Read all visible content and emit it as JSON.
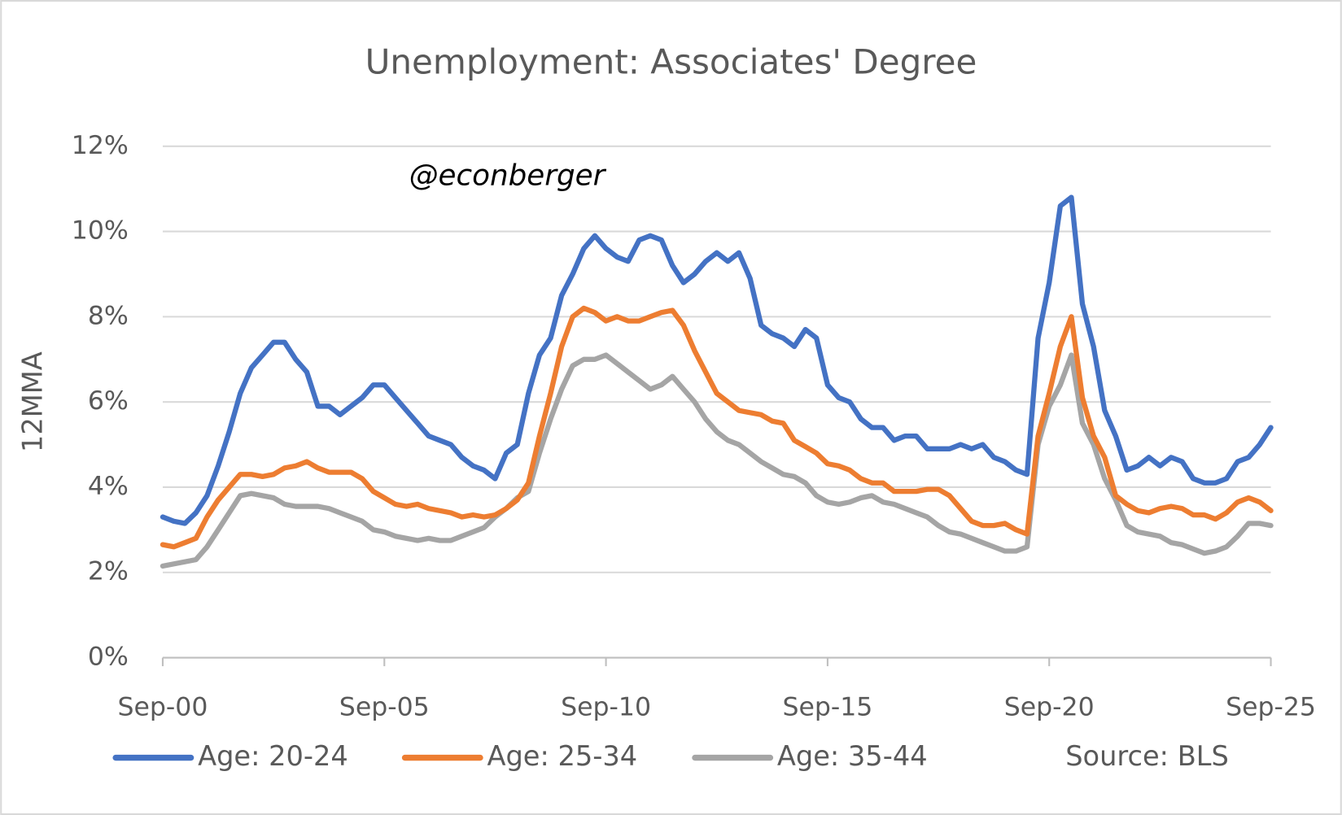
{
  "chart_data": {
    "type": "line",
    "title": "Unemployment: Associates' Degree",
    "y_label": "12MMA",
    "annotations": [
      "@econberger",
      "Source: BLS"
    ],
    "categories": [
      "Sep-00",
      null,
      null,
      null,
      null,
      null,
      null,
      null,
      null,
      null,
      null,
      null,
      null,
      null,
      null,
      null,
      null,
      null,
      null,
      null,
      "Sep-05",
      null,
      null,
      null,
      null,
      null,
      null,
      null,
      null,
      null,
      null,
      null,
      null,
      null,
      null,
      null,
      null,
      null,
      null,
      null,
      "Sep-10",
      null,
      null,
      null,
      null,
      null,
      null,
      null,
      null,
      null,
      null,
      null,
      null,
      null,
      null,
      null,
      null,
      null,
      null,
      null,
      "Sep-15",
      null,
      null,
      null,
      null,
      null,
      null,
      null,
      null,
      null,
      null,
      null,
      null,
      null,
      null,
      null,
      null,
      null,
      null,
      null,
      "Sep-20",
      null,
      null,
      null,
      null,
      null,
      null,
      null,
      null,
      null,
      null,
      null,
      null,
      null,
      null,
      null,
      null,
      null,
      null,
      null,
      "Sep-25"
    ],
    "series": [
      {
        "name": "Age: 20-24",
        "color": "#4472c4",
        "values": [
          3.3,
          3.2,
          3.15,
          3.4,
          3.8,
          4.5,
          5.3,
          6.2,
          6.8,
          7.1,
          7.4,
          7.4,
          7.0,
          6.7,
          5.9,
          5.9,
          5.7,
          5.9,
          6.1,
          6.4,
          6.4,
          6.1,
          5.8,
          5.5,
          5.2,
          5.1,
          5.0,
          4.7,
          4.5,
          4.4,
          4.2,
          4.8,
          5.0,
          6.2,
          7.1,
          7.5,
          8.5,
          9.0,
          9.6,
          9.9,
          9.6,
          9.4,
          9.3,
          9.8,
          9.9,
          9.8,
          9.2,
          8.8,
          9.0,
          9.3,
          9.5,
          9.3,
          9.5,
          8.9,
          7.8,
          7.6,
          7.5,
          7.3,
          7.7,
          7.5,
          6.4,
          6.1,
          6.0,
          5.6,
          5.4,
          5.4,
          5.1,
          5.2,
          5.2,
          4.9,
          4.9,
          4.9,
          5.0,
          4.9,
          5.0,
          4.7,
          4.6,
          4.4,
          4.3,
          7.5,
          8.8,
          10.6,
          10.8,
          8.3,
          7.3,
          5.8,
          5.2,
          4.4,
          4.5,
          4.7,
          4.5,
          4.7,
          4.6,
          4.2,
          4.1,
          4.1,
          4.2,
          4.6,
          4.7,
          5.0,
          5.4
        ]
      },
      {
        "name": "Age: 25-34",
        "color": "#ed7d31",
        "values": [
          2.65,
          2.6,
          2.7,
          2.8,
          3.3,
          3.7,
          4.0,
          4.3,
          4.3,
          4.25,
          4.3,
          4.45,
          4.5,
          4.6,
          4.45,
          4.35,
          4.35,
          4.35,
          4.2,
          3.9,
          3.75,
          3.6,
          3.55,
          3.6,
          3.5,
          3.45,
          3.4,
          3.3,
          3.35,
          3.3,
          3.35,
          3.5,
          3.7,
          4.1,
          5.2,
          6.2,
          7.3,
          8.0,
          8.2,
          8.1,
          7.9,
          8.0,
          7.9,
          7.9,
          8.0,
          8.1,
          8.15,
          7.8,
          7.2,
          6.7,
          6.2,
          6.0,
          5.8,
          5.75,
          5.7,
          5.55,
          5.5,
          5.1,
          4.95,
          4.8,
          4.55,
          4.5,
          4.4,
          4.2,
          4.1,
          4.1,
          3.9,
          3.9,
          3.9,
          3.95,
          3.95,
          3.8,
          3.5,
          3.2,
          3.1,
          3.1,
          3.15,
          3.0,
          2.9,
          5.2,
          6.2,
          7.3,
          8.0,
          6.1,
          5.2,
          4.7,
          3.8,
          3.6,
          3.45,
          3.4,
          3.5,
          3.55,
          3.5,
          3.35,
          3.35,
          3.25,
          3.4,
          3.65,
          3.75,
          3.65,
          3.45
        ]
      },
      {
        "name": "Age: 35-44",
        "color": "#a5a5a5",
        "values": [
          2.15,
          2.2,
          2.25,
          2.3,
          2.6,
          3.0,
          3.4,
          3.8,
          3.85,
          3.8,
          3.75,
          3.6,
          3.55,
          3.55,
          3.55,
          3.5,
          3.4,
          3.3,
          3.2,
          3.0,
          2.95,
          2.85,
          2.8,
          2.75,
          2.8,
          2.75,
          2.75,
          2.85,
          2.95,
          3.05,
          3.3,
          3.5,
          3.75,
          3.9,
          4.8,
          5.6,
          6.3,
          6.85,
          7.0,
          7.0,
          7.1,
          6.9,
          6.7,
          6.5,
          6.3,
          6.4,
          6.6,
          6.3,
          6.0,
          5.6,
          5.3,
          5.1,
          5.0,
          4.8,
          4.6,
          4.45,
          4.3,
          4.25,
          4.1,
          3.8,
          3.65,
          3.6,
          3.65,
          3.75,
          3.8,
          3.65,
          3.6,
          3.5,
          3.4,
          3.3,
          3.1,
          2.95,
          2.9,
          2.8,
          2.7,
          2.6,
          2.5,
          2.5,
          2.6,
          5.0,
          5.9,
          6.4,
          7.1,
          5.5,
          5.0,
          4.2,
          3.7,
          3.1,
          2.95,
          2.9,
          2.85,
          2.7,
          2.65,
          2.55,
          2.45,
          2.5,
          2.6,
          2.85,
          3.15,
          3.15,
          3.1
        ]
      }
    ],
    "ylim": [
      0,
      12
    ],
    "yticks": [
      {
        "value": 0,
        "label": "0%"
      },
      {
        "value": 2,
        "label": "2%"
      },
      {
        "value": 4,
        "label": "4%"
      },
      {
        "value": 6,
        "label": "6%"
      },
      {
        "value": 8,
        "label": "8%"
      },
      {
        "value": 10,
        "label": "10%"
      },
      {
        "value": 12,
        "label": "12%"
      }
    ],
    "grid": true,
    "legend": "bottom"
  }
}
